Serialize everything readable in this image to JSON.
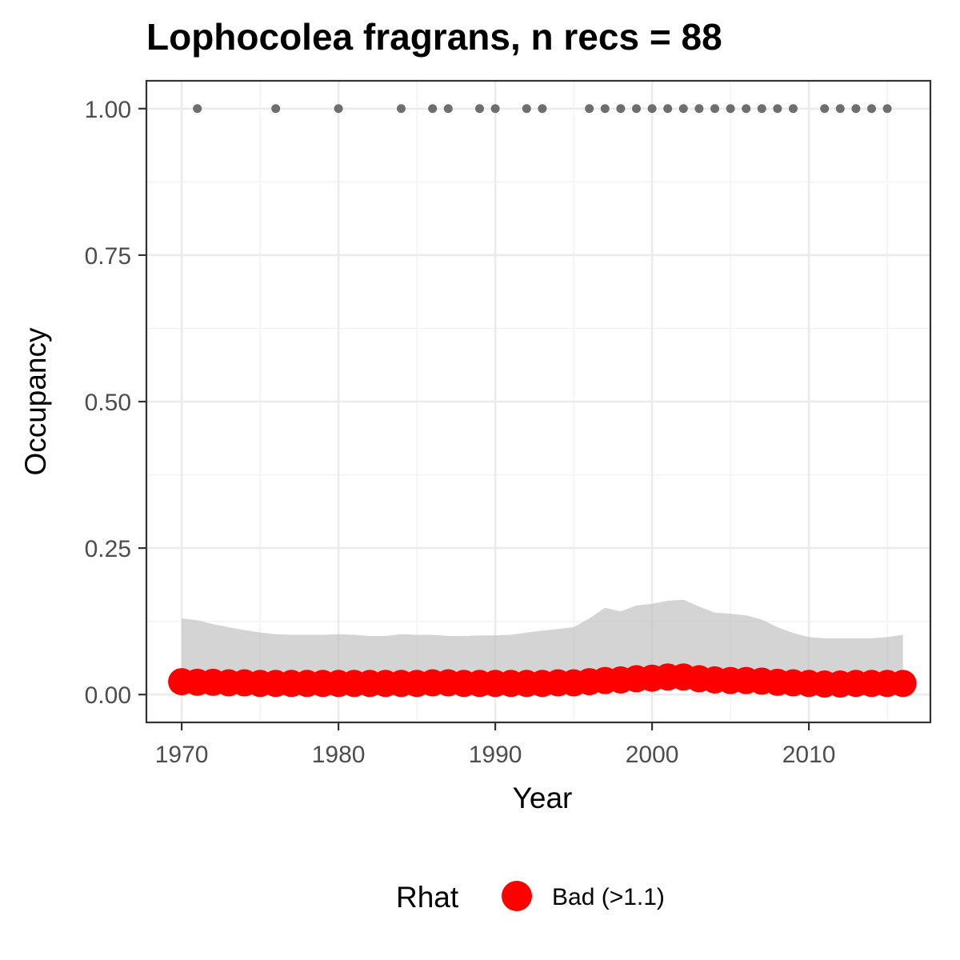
{
  "chart_data": {
    "type": "line",
    "title": "Lophocolea fragrans, n recs = 88",
    "xlabel": "Year",
    "ylabel": "Occupancy",
    "xlim": [
      1967.8,
      1917.5
    ],
    "ylim": [
      -0.0475,
      1.0475
    ],
    "x_ticks": [
      1970,
      1980,
      1990,
      2000,
      2010
    ],
    "x_tick_labels": [
      "1970",
      "1980",
      "1990",
      "2000",
      "2010"
    ],
    "y_ticks": [
      0,
      0.25,
      0.5,
      0.75,
      1.0
    ],
    "y_tick_labels": [
      "0.00",
      "0.25",
      "0.50",
      "0.75",
      "1.00"
    ],
    "grid": true,
    "legend": {
      "title": "Rhat",
      "position": "bottom",
      "entries": [
        {
          "label": "Bad (>1.1)",
          "color": "#ff0000"
        }
      ]
    },
    "series": [
      {
        "name": "ribbon_upper",
        "kind": "ribbon",
        "color": "#bdbdbd",
        "x": [
          1970,
          1971,
          1972,
          1973,
          1974,
          1975,
          1976,
          1977,
          1978,
          1979,
          1980,
          1981,
          1982,
          1983,
          1984,
          1985,
          1986,
          1987,
          1988,
          1989,
          1990,
          1991,
          1992,
          1993,
          1994,
          1995,
          1996,
          1997,
          1998,
          1999,
          2000,
          2001,
          2002,
          2003,
          2004,
          2005,
          2006,
          2007,
          2008,
          2009,
          2010,
          2011,
          2012,
          2013,
          2014,
          2015,
          2016
        ],
        "upper": [
          0.13,
          0.127,
          0.12,
          0.115,
          0.11,
          0.106,
          0.103,
          0.102,
          0.102,
          0.102,
          0.103,
          0.102,
          0.1,
          0.1,
          0.103,
          0.102,
          0.102,
          0.1,
          0.1,
          0.101,
          0.101,
          0.102,
          0.106,
          0.109,
          0.112,
          0.115,
          0.13,
          0.148,
          0.142,
          0.152,
          0.155,
          0.16,
          0.162,
          0.15,
          0.14,
          0.138,
          0.135,
          0.128,
          0.115,
          0.105,
          0.098,
          0.096,
          0.096,
          0.096,
          0.096,
          0.098,
          0.102
        ],
        "lower": [
          0.02,
          0.019,
          0.018,
          0.017,
          0.016,
          0.015,
          0.015,
          0.015,
          0.015,
          0.015,
          0.015,
          0.015,
          0.015,
          0.015,
          0.015,
          0.015,
          0.015,
          0.015,
          0.015,
          0.015,
          0.015,
          0.015,
          0.015,
          0.015,
          0.015,
          0.015,
          0.016,
          0.017,
          0.017,
          0.018,
          0.019,
          0.02,
          0.02,
          0.019,
          0.018,
          0.017,
          0.016,
          0.015,
          0.014,
          0.013,
          0.012,
          0.012,
          0.012,
          0.012,
          0.012,
          0.012,
          0.013
        ]
      },
      {
        "name": "Bad (>1.1)",
        "kind": "points",
        "color": "#ff0000",
        "x": [
          1970,
          1971,
          1972,
          1973,
          1974,
          1975,
          1976,
          1977,
          1978,
          1979,
          1980,
          1981,
          1982,
          1983,
          1984,
          1985,
          1986,
          1987,
          1988,
          1989,
          1990,
          1991,
          1992,
          1993,
          1994,
          1995,
          1996,
          1997,
          1998,
          1999,
          2000,
          2001,
          2002,
          2003,
          2004,
          2005,
          2006,
          2007,
          2008,
          2009,
          2010,
          2011,
          2012,
          2013,
          2014,
          2015,
          2016
        ],
        "y": [
          0.022,
          0.021,
          0.021,
          0.02,
          0.02,
          0.019,
          0.019,
          0.019,
          0.019,
          0.019,
          0.019,
          0.019,
          0.019,
          0.019,
          0.019,
          0.019,
          0.02,
          0.02,
          0.019,
          0.019,
          0.019,
          0.019,
          0.019,
          0.019,
          0.02,
          0.02,
          0.022,
          0.024,
          0.025,
          0.027,
          0.028,
          0.03,
          0.03,
          0.027,
          0.025,
          0.024,
          0.024,
          0.023,
          0.021,
          0.02,
          0.019,
          0.018,
          0.018,
          0.019,
          0.019,
          0.019,
          0.019
        ]
      },
      {
        "name": "observations",
        "kind": "points",
        "color": "#6e6e6e",
        "x": [
          1971,
          1976,
          1980,
          1984,
          1986,
          1987,
          1989,
          1990,
          1992,
          1993,
          1996,
          1997,
          1998,
          1999,
          2000,
          2001,
          2002,
          2003,
          2004,
          2005,
          2006,
          2007,
          2008,
          2009,
          2011,
          2012,
          2013,
          2014,
          2015
        ],
        "y": [
          1,
          1,
          1,
          1,
          1,
          1,
          1,
          1,
          1,
          1,
          1,
          1,
          1,
          1,
          1,
          1,
          1,
          1,
          1,
          1,
          1,
          1,
          1,
          1,
          1,
          1,
          1,
          1,
          1
        ]
      }
    ]
  }
}
